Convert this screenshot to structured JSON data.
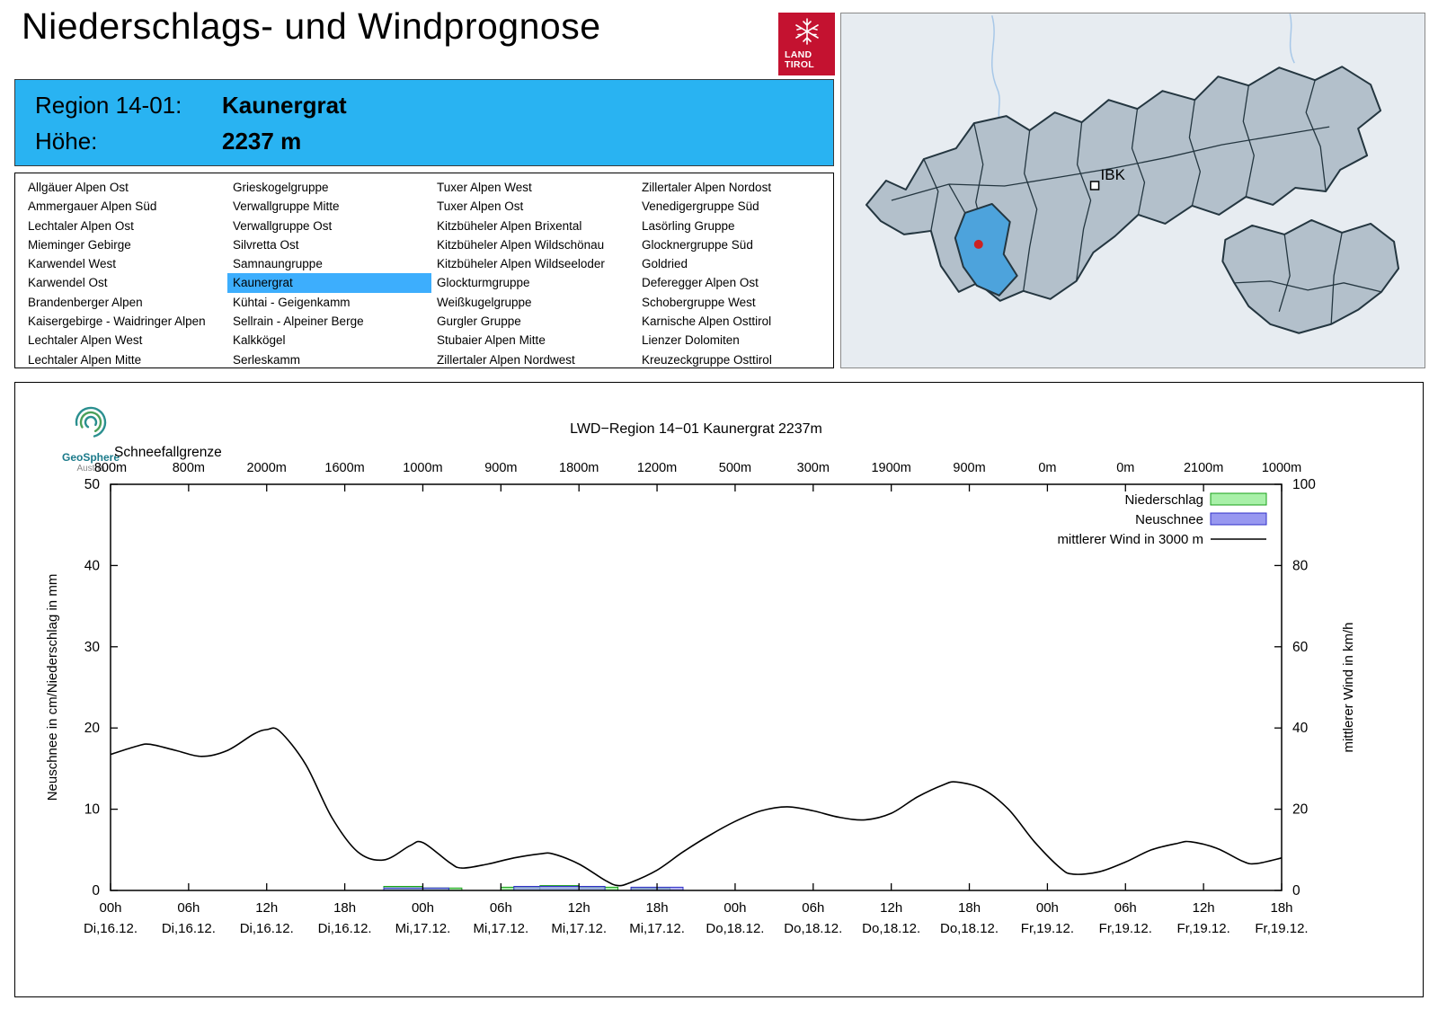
{
  "page": {
    "title": "Niederschlags- und Windprognose"
  },
  "logo": {
    "line1": "LAND",
    "line2": "TIROL",
    "bg": "#c41230"
  },
  "map": {
    "city_label": "IBK",
    "highlight_color": "#4da3dc",
    "marker_color": "#cc2222"
  },
  "region_box": {
    "bg": "#29b3f2",
    "rows": [
      {
        "label": "Region 14-01:",
        "value": "Kaunergrat"
      },
      {
        "label": "Höhe:",
        "value": "2237 m"
      }
    ]
  },
  "region_list": {
    "selected": "Kaunergrat",
    "selected_bg": "#3daefd",
    "columns": [
      [
        "Allgäuer Alpen Ost",
        "Ammergauer Alpen Süd",
        "Lechtaler Alpen Ost",
        "Mieminger Gebirge",
        "Karwendel West",
        "Karwendel Ost",
        "Brandenberger Alpen",
        "Kaisergebirge - Waidringer Alpen",
        "Lechtaler Alpen West",
        "Lechtaler Alpen Mitte"
      ],
      [
        "Grieskogelgruppe",
        "Verwallgruppe Mitte",
        "Verwallgruppe Ost",
        "Silvretta Ost",
        "Samnaungruppe",
        "Kaunergrat",
        "Kühtai - Geigenkamm",
        "Sellrain - Alpeiner Berge",
        "Kalkkögel",
        "Serleskamm"
      ],
      [
        "Tuxer Alpen West",
        "Tuxer Alpen Ost",
        "Kitzbüheler Alpen Brixental",
        "Kitzbüheler Alpen Wildschönau",
        "Kitzbüheler Alpen Wildseeloder",
        "Glockturmgruppe",
        "Weißkugelgruppe",
        "Gurgler Gruppe",
        "Stubaier Alpen Mitte",
        "Zillertaler Alpen Nordwest"
      ],
      [
        "Zillertaler Alpen Nordost",
        "Venedigergruppe Süd",
        "Lasörling Gruppe",
        "Glocknergruppe Süd",
        "Goldried",
        "Deferegger Alpen Ost",
        "Schobergruppe West",
        "Karnische Alpen Osttirol",
        "Lienzer Dolomiten",
        "Kreuzeckgruppe Osttirol"
      ]
    ]
  },
  "chart": {
    "brand": {
      "name": "GeoSphere",
      "sub": "Austria"
    },
    "title": "LWD−Region 14−01 Kaunergrat 2237m",
    "top_axis_label": "Schneefallgrenze",
    "left_axis_label": "Neuschnee in cm/Niederschlag in mm",
    "right_axis_label": "mittlerer Wind in km/h",
    "legend": [
      {
        "label": "Niederschlag",
        "type": "box",
        "fill": "#a8f0a8",
        "stroke": "#18a018"
      },
      {
        "label": "Neuschnee",
        "type": "box",
        "fill": "#9898f0",
        "stroke": "#3030c8"
      },
      {
        "label": "mittlerer Wind in 3000 m",
        "type": "line",
        "stroke": "#000000"
      }
    ]
  },
  "chart_data": {
    "type": "line+bar",
    "x_hours_range": [
      0,
      90
    ],
    "x_ticks": [
      {
        "t": 0,
        "time": "00h",
        "date": "Di,16.12."
      },
      {
        "t": 6,
        "time": "06h",
        "date": "Di,16.12."
      },
      {
        "t": 12,
        "time": "12h",
        "date": "Di,16.12."
      },
      {
        "t": 18,
        "time": "18h",
        "date": "Di,16.12."
      },
      {
        "t": 24,
        "time": "00h",
        "date": "Mi,17.12."
      },
      {
        "t": 30,
        "time": "06h",
        "date": "Mi,17.12."
      },
      {
        "t": 36,
        "time": "12h",
        "date": "Mi,17.12."
      },
      {
        "t": 42,
        "time": "18h",
        "date": "Mi,17.12."
      },
      {
        "t": 48,
        "time": "00h",
        "date": "Do,18.12."
      },
      {
        "t": 54,
        "time": "06h",
        "date": "Do,18.12."
      },
      {
        "t": 60,
        "time": "12h",
        "date": "Do,18.12."
      },
      {
        "t": 66,
        "time": "18h",
        "date": "Do,18.12."
      },
      {
        "t": 72,
        "time": "00h",
        "date": "Fr,19.12."
      },
      {
        "t": 78,
        "time": "06h",
        "date": "Fr,19.12."
      },
      {
        "t": 84,
        "time": "12h",
        "date": "Fr,19.12."
      },
      {
        "t": 90,
        "time": "18h",
        "date": "Fr,19.12."
      }
    ],
    "snowline_m": [
      "800m",
      "800m",
      "2000m",
      "1600m",
      "1000m",
      "900m",
      "1800m",
      "1200m",
      "500m",
      "300m",
      "1900m",
      "900m",
      "0m",
      "0m",
      "2100m",
      "1000m"
    ],
    "left_axis": {
      "min": 0,
      "max": 50,
      "ticks": [
        0,
        10,
        20,
        30,
        40,
        50
      ],
      "unit": "cm / mm"
    },
    "right_axis": {
      "min": 0,
      "max": 100,
      "ticks": [
        0,
        20,
        40,
        60,
        80,
        100
      ],
      "unit": "km/h"
    },
    "wind_kmh": [
      [
        0,
        33.5
      ],
      [
        2,
        35.5
      ],
      [
        3,
        36
      ],
      [
        5,
        34.5
      ],
      [
        7,
        33
      ],
      [
        9,
        34.5
      ],
      [
        11,
        38.5
      ],
      [
        12,
        39.6
      ],
      [
        13,
        39.2
      ],
      [
        15,
        31
      ],
      [
        17,
        18
      ],
      [
        19,
        9.5
      ],
      [
        21,
        7.5
      ],
      [
        23,
        11
      ],
      [
        24,
        11.8
      ],
      [
        26,
        7
      ],
      [
        27,
        5.5
      ],
      [
        29,
        6.5
      ],
      [
        31,
        8
      ],
      [
        33,
        9
      ],
      [
        34,
        9
      ],
      [
        36,
        6.5
      ],
      [
        38,
        2.5
      ],
      [
        39,
        1.2
      ],
      [
        40,
        2
      ],
      [
        42,
        5
      ],
      [
        44,
        9.5
      ],
      [
        46,
        13.5
      ],
      [
        48,
        17
      ],
      [
        50,
        19.6
      ],
      [
        52,
        20.6
      ],
      [
        54,
        19.6
      ],
      [
        56,
        18
      ],
      [
        58,
        17.4
      ],
      [
        60,
        19
      ],
      [
        62,
        23
      ],
      [
        64,
        26
      ],
      [
        65,
        26.7
      ],
      [
        67,
        25
      ],
      [
        69,
        20
      ],
      [
        71,
        12
      ],
      [
        73,
        5.5
      ],
      [
        74,
        4
      ],
      [
        76,
        4.6
      ],
      [
        78,
        7
      ],
      [
        80,
        10
      ],
      [
        82,
        11.6
      ],
      [
        83,
        12
      ],
      [
        85,
        10.4
      ],
      [
        87,
        7.2
      ],
      [
        88,
        6.6
      ],
      [
        90,
        8
      ]
    ],
    "niederschlag_mm": [
      [
        21,
        24,
        0.5
      ],
      [
        24,
        27,
        0.3
      ],
      [
        30,
        33,
        0.4
      ],
      [
        33,
        36,
        0.6
      ],
      [
        36,
        39,
        0.4
      ],
      [
        40,
        43,
        0.3
      ]
    ],
    "neuschnee_cm": [
      [
        21,
        26,
        0.3
      ],
      [
        31,
        38,
        0.5
      ],
      [
        40,
        44,
        0.4
      ]
    ]
  }
}
